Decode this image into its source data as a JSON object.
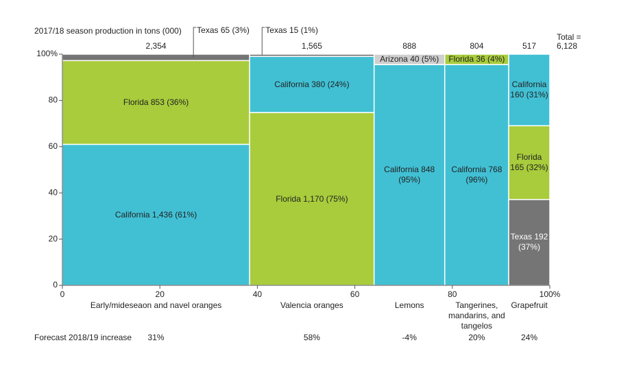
{
  "chart_data": {
    "type": "marimekko",
    "header": "2017/18 season production in tons (000)",
    "total_caption": "Total =",
    "grand_total": 6128,
    "grand_total_label": "6,128",
    "forecast_caption": "Forecast 2018/19 increase",
    "xlim": [
      0,
      100
    ],
    "ylim": [
      0,
      100
    ],
    "xticks": [
      0,
      20,
      40,
      60,
      80,
      {
        "value": 100,
        "label": "100%"
      }
    ],
    "yticks": [
      0,
      20,
      40,
      60,
      80,
      {
        "value": 100,
        "label": "100%"
      }
    ],
    "columns": [
      {
        "category": "Early/mideseaon and navel oranges",
        "total": 2354,
        "total_label": "2,354",
        "forecast": "31%",
        "segments": [
          {
            "name": "California",
            "value": 1436,
            "label": "California 1,436 (61%)",
            "color": "#41c0d4"
          },
          {
            "name": "Florida",
            "value": 853,
            "label": "Florida 853 (36%)",
            "color": "#a8cc3c"
          },
          {
            "name": "Texas",
            "value": 65,
            "label": "Texas 65 (3%)",
            "color": "#757575"
          }
        ]
      },
      {
        "category": "Valencia oranges",
        "total": 1565,
        "total_label": "1,565",
        "forecast": "58%",
        "segments": [
          {
            "name": "Florida",
            "value": 1170,
            "label": "Florida 1,170 (75%)",
            "color": "#a8cc3c"
          },
          {
            "name": "California",
            "value": 380,
            "label": "California 380 (24%)",
            "color": "#41c0d4"
          },
          {
            "name": "Texas",
            "value": 15,
            "label": "Texas 15 (1%)",
            "color": "#757575"
          }
        ]
      },
      {
        "category": "Lemons",
        "total": 888,
        "total_label": "888",
        "forecast": "-4%",
        "segments": [
          {
            "name": "California",
            "value": 848,
            "label": "California 848 (95%)",
            "color": "#41c0d4"
          },
          {
            "name": "Arizona",
            "value": 40,
            "label": "Arizona 40 (5%)",
            "color": "#cfcfcf"
          }
        ]
      },
      {
        "category": "Tangerines, mandarins, and tangelos",
        "total": 804,
        "total_label": "804",
        "forecast": "20%",
        "segments": [
          {
            "name": "California",
            "value": 768,
            "label": "California 768 (96%)",
            "color": "#41c0d4"
          },
          {
            "name": "Florida",
            "value": 36,
            "label": "Florida 36 (4%)",
            "color": "#a8cc3c"
          }
        ]
      },
      {
        "category": "Grapefruit",
        "total": 517,
        "total_label": "517",
        "forecast": "24%",
        "segments": [
          {
            "name": "Texas",
            "value": 192,
            "label": "Texas 192 (37%)",
            "color": "#757575"
          },
          {
            "name": "Florida",
            "value": 165,
            "label": "Florida 165 (32%)",
            "color": "#a8cc3c"
          },
          {
            "name": "California",
            "value": 160,
            "label": "California 160 (31%)",
            "color": "#41c0d4"
          }
        ]
      }
    ]
  }
}
